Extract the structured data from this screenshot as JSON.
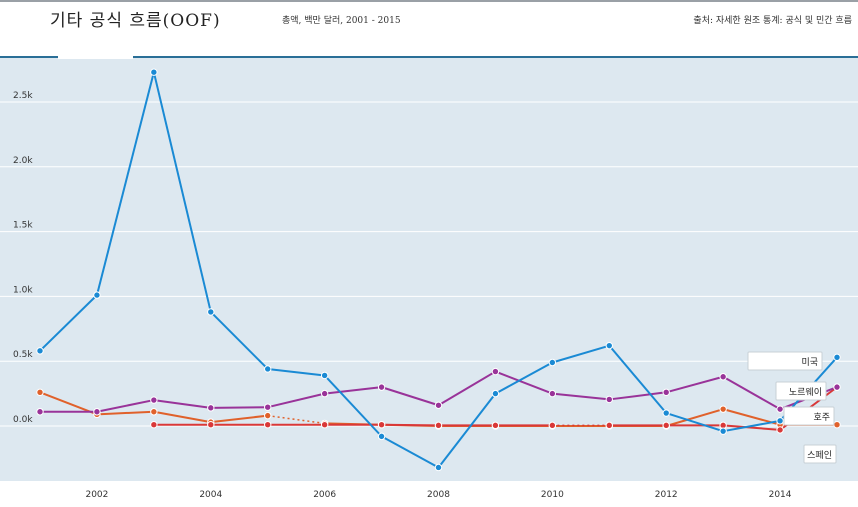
{
  "header": {
    "title": "기타 공식 흐름(OOF)",
    "subtitle": "총액, 백만 달러, 2001 - 2015",
    "source": "출처: 자세한 원조 통계: 공식 및 민간 흐름"
  },
  "chart_data": {
    "type": "line",
    "x": [
      2001,
      2002,
      2003,
      2004,
      2005,
      2006,
      2007,
      2008,
      2009,
      2010,
      2011,
      2012,
      2013,
      2014,
      2015
    ],
    "xticks": [
      "2002",
      "2004",
      "2006",
      "2008",
      "2010",
      "2012",
      "2014"
    ],
    "xtick_values": [
      2002,
      2004,
      2006,
      2008,
      2010,
      2012,
      2014
    ],
    "yticks": [
      "0.0k",
      "0.5k",
      "1.0k",
      "1.5k",
      "2.0k",
      "2.5k"
    ],
    "ytick_values": [
      0,
      500,
      1000,
      1500,
      2000,
      2500
    ],
    "ylim": [
      -400,
      2850
    ],
    "xlim": [
      2000.9,
      2015.4
    ],
    "grid": true,
    "series": [
      {
        "name": "미국",
        "color": "#1a8ad4",
        "values": [
          580,
          1010,
          2730,
          880,
          440,
          390,
          -80,
          -320,
          250,
          490,
          620,
          100,
          -40,
          40,
          530
        ]
      },
      {
        "name": "노르웨이",
        "color": "#993399",
        "values": [
          110,
          110,
          200,
          140,
          145,
          250,
          300,
          160,
          420,
          250,
          205,
          260,
          380,
          130,
          300
        ]
      },
      {
        "name": "호주",
        "color": "#e0612b",
        "values": [
          260,
          90,
          110,
          30,
          80,
          20,
          10,
          0,
          0,
          0,
          0,
          0,
          130,
          10,
          10
        ],
        "dashed_segments": [
          [
            2005,
            2006
          ]
        ]
      },
      {
        "name": "스페인",
        "color": "#d93838",
        "values": [
          null,
          null,
          10,
          10,
          10,
          10,
          10,
          5,
          5,
          5,
          5,
          5,
          5,
          -30,
          300
        ],
        "dashed_segments": [
          [
            2010,
            2011
          ]
        ]
      }
    ]
  }
}
